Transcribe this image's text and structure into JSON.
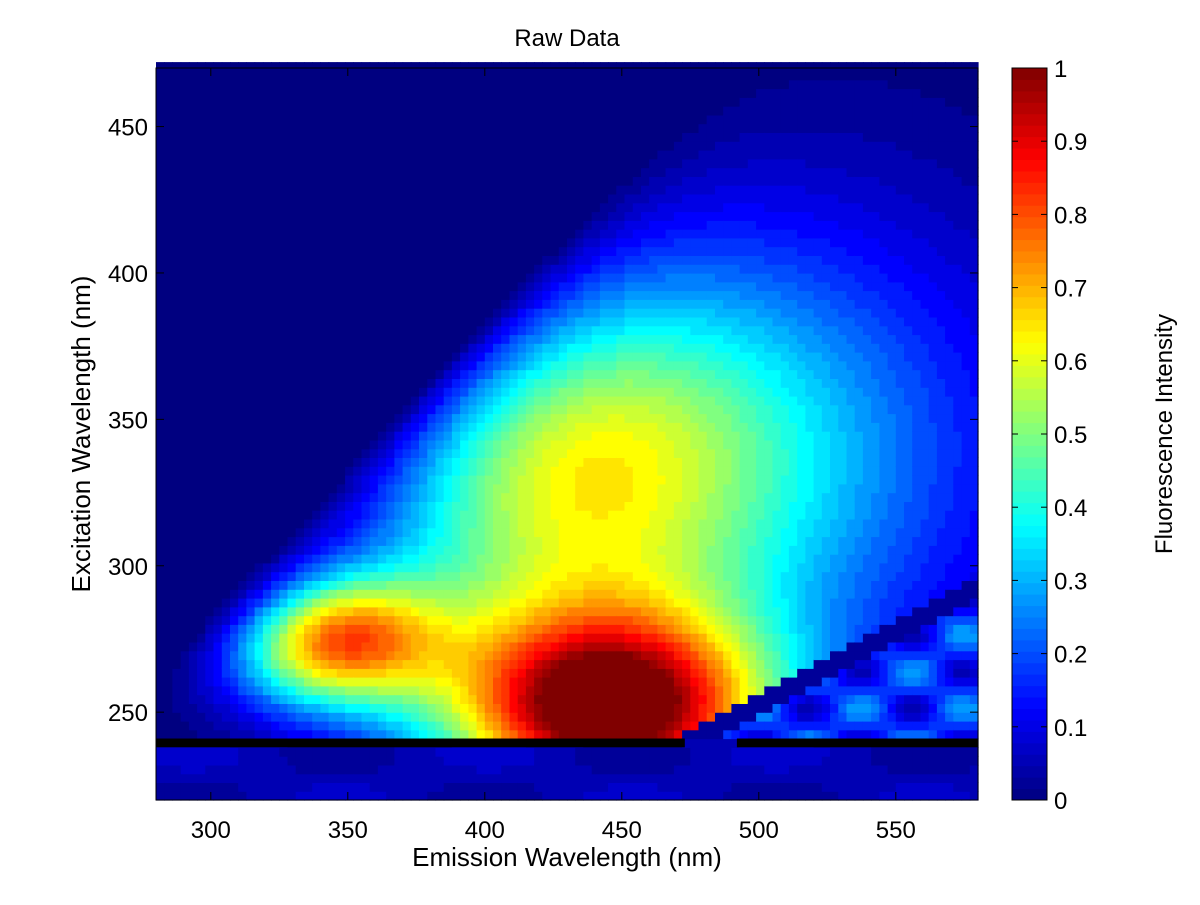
{
  "chart_data": {
    "type": "heatmap",
    "subtype": "filled-contour excitation-emission matrix",
    "title": "Raw Data",
    "xlabel": "Emission Wavelength (nm)",
    "ylabel": "Excitation Wavelength (nm)",
    "colorbar_label": "Fluorescence Intensity",
    "xlim": [
      280,
      580
    ],
    "ylim": [
      220,
      470
    ],
    "clim": [
      0,
      1
    ],
    "colormap": "jet",
    "xticks": [
      300,
      350,
      400,
      450,
      500,
      550
    ],
    "yticks": [
      250,
      300,
      350,
      400,
      450
    ],
    "colorbar_ticks": [
      0,
      0.1,
      0.2,
      0.3,
      0.4,
      0.5,
      0.6,
      0.7,
      0.8,
      0.9,
      1
    ],
    "colorbar_tick_labels": [
      "0",
      "0.1",
      "0.2",
      "0.3",
      "0.4",
      "0.5",
      "0.6",
      "0.7",
      "0.8",
      "0.9",
      "1"
    ],
    "peaks": [
      {
        "em": 445,
        "ex": 250,
        "intensity": 1.0,
        "sigma_em": 42,
        "sigma_ex": 24
      },
      {
        "em": 343,
        "ex": 275,
        "intensity": 0.78,
        "sigma_em": 28,
        "sigma_ex": 16
      },
      {
        "em": 425,
        "ex": 330,
        "intensity": 0.45,
        "sigma_em": 55,
        "sigma_ex": 45
      },
      {
        "em": 490,
        "ex": 340,
        "intensity": 0.3,
        "sigma_em": 75,
        "sigma_ex": 60
      }
    ],
    "masked_regions": {
      "below_excitation": 240,
      "below_excitation_value": 0.06,
      "rayleigh_offset_nm": 15,
      "second_order_band": {
        "slope": 2,
        "offset": -5,
        "halfwidth_nm": 7
      }
    }
  }
}
